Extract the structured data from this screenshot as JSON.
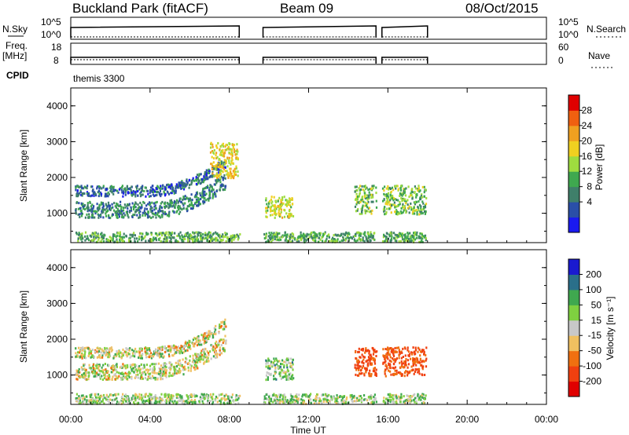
{
  "header": {
    "station": "Buckland Park (fitACF)",
    "beam": "Beam 09",
    "date": "08/Oct/2015"
  },
  "aux": {
    "nsky_label": "N.Sky",
    "nsky_ticks": [
      "10^5",
      "10^0"
    ],
    "nsearch_label": "N.Search",
    "freq_label": "Freq.",
    "freq_unit": "[MHz]",
    "freq_ticks": [
      "18",
      "8"
    ],
    "nave_label": "Nave",
    "nave_ticks": [
      "60",
      "0"
    ],
    "cpid_label": "CPID",
    "cpid_value": "themis 3300"
  },
  "colors": {
    "power": [
      "#1a1af0",
      "#2a4fa8",
      "#3f7f6a",
      "#3fa84f",
      "#9fdc3f",
      "#f0d020",
      "#f0a020",
      "#f06010",
      "#e00000"
    ],
    "velocity": [
      "#e00000",
      "#f04010",
      "#f07010",
      "#f0c060",
      "#c8c8c8",
      "#7fd040",
      "#3fa84f",
      "#2a6f8a",
      "#1a1ad0"
    ]
  },
  "chart_data": [
    {
      "type": "heatmap",
      "title": "Power",
      "ylabel": "Slant Range [km]",
      "ylim": [
        180,
        4500
      ],
      "yticks": [
        "4000",
        "3000",
        "2000",
        "1000"
      ],
      "colorbar_label": "Power [dB]",
      "colorbar_ticks": [
        "28",
        "24",
        "20",
        "16",
        "12",
        "8",
        "4"
      ],
      "data_gaps_hours": [
        [
          8.5,
          9.7
        ],
        [
          15.4,
          15.7
        ]
      ],
      "data_coverage_hours": [
        [
          0,
          18
        ]
      ],
      "echo_regions": [
        {
          "name": "ionospheric band upper",
          "hours": [
            0.2,
            7.8
          ],
          "range_km": [
            1500,
            1800
          ],
          "power_db": 6
        },
        {
          "name": "ionospheric band lower",
          "hours": [
            0.2,
            7.8
          ],
          "range_km": [
            900,
            1350
          ],
          "power_db": 8
        },
        {
          "name": "near range ground scatter",
          "hours": [
            0.2,
            17.9
          ],
          "range_km": [
            200,
            500
          ],
          "power_db": 12
        },
        {
          "name": "dusk enhancement",
          "hours": [
            7.0,
            8.4
          ],
          "range_km": [
            2000,
            3000
          ],
          "power_db": 20
        },
        {
          "name": "post-gap patch",
          "hours": [
            9.8,
            11.2
          ],
          "range_km": [
            900,
            1500
          ],
          "power_db": 18
        },
        {
          "name": "afternoon patch",
          "hours": [
            14.3,
            17.9
          ],
          "range_km": [
            1000,
            1800
          ],
          "power_db": 14
        }
      ]
    },
    {
      "type": "heatmap",
      "title": "Velocity",
      "ylabel": "Slant Range [km]",
      "ylim": [
        180,
        4500
      ],
      "yticks": [
        "4000",
        "3000",
        "2000",
        "1000"
      ],
      "colorbar_label": "Velocity [m s⁻¹]",
      "colorbar_ticks": [
        "200",
        "100",
        "50",
        "15",
        "-15",
        "-50",
        "-100",
        "-200"
      ],
      "data_gaps_hours": [
        [
          8.5,
          9.7
        ],
        [
          15.4,
          15.7
        ]
      ],
      "echo_regions": [
        {
          "name": "ionospheric band upper",
          "hours": [
            0.2,
            7.8
          ],
          "range_km": [
            1500,
            1800
          ],
          "velocity_ms": 0
        },
        {
          "name": "ionospheric band lower",
          "hours": [
            0.2,
            7.8
          ],
          "range_km": [
            900,
            1350
          ],
          "velocity_ms": 0
        },
        {
          "name": "near range ground scatter",
          "hours": [
            0.2,
            17.9
          ],
          "range_km": [
            200,
            500
          ],
          "velocity_ms": 30
        },
        {
          "name": "post-gap patch",
          "hours": [
            9.8,
            11.2
          ],
          "range_km": [
            900,
            1500
          ],
          "velocity_ms": 40
        },
        {
          "name": "afternoon patch",
          "hours": [
            14.3,
            17.9
          ],
          "range_km": [
            1000,
            1800
          ],
          "velocity_ms": -120
        }
      ]
    }
  ],
  "x_axis": {
    "label": "Time UT",
    "ticks": [
      "00:00",
      "04:00",
      "08:00",
      "12:00",
      "16:00",
      "20:00",
      "00:00"
    ],
    "range_hours": [
      0,
      24
    ]
  }
}
